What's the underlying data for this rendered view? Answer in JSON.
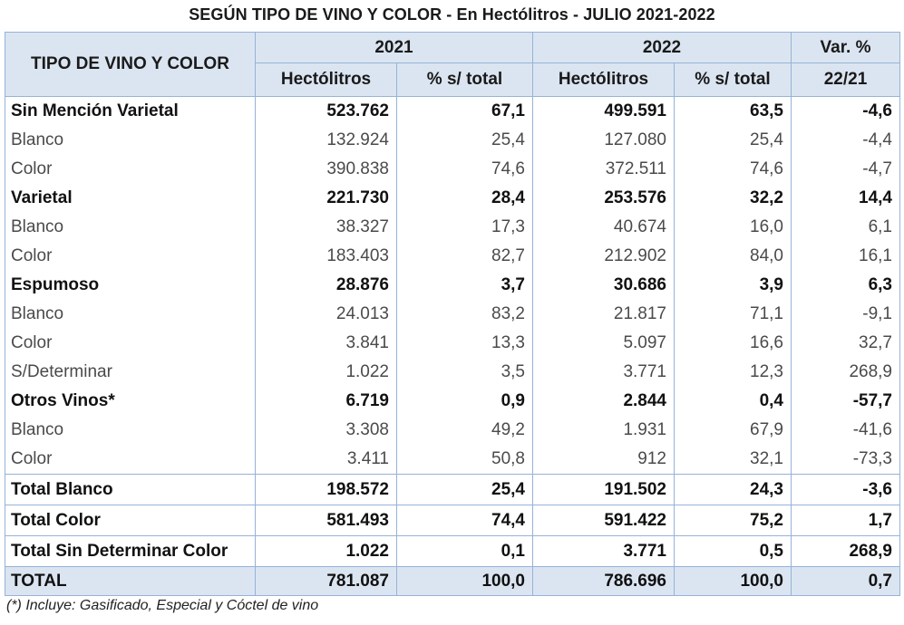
{
  "title": "SEGÚN TIPO DE VINO Y COLOR - En Hectólitros - JULIO 2021-2022",
  "header": {
    "tipo": "TIPO DE VINO Y COLOR",
    "year1": "2021",
    "year2": "2022",
    "var_line1": "Var. %",
    "var_line2": "22/21",
    "hectolitros": "Hectólitros",
    "pct_total": "% s/ total"
  },
  "rows": [
    {
      "label": "Sin Mención Varietal",
      "h2021": "523.762",
      "p2021": "67,1",
      "h2022": "499.591",
      "p2022": "63,5",
      "var": "-4,6"
    },
    {
      "label": "Blanco",
      "h2021": "132.924",
      "p2021": "25,4",
      "h2022": "127.080",
      "p2022": "25,4",
      "var": "-4,4"
    },
    {
      "label": "Color",
      "h2021": "390.838",
      "p2021": "74,6",
      "h2022": "372.511",
      "p2022": "74,6",
      "var": "-4,7"
    },
    {
      "label": "Varietal",
      "h2021": "221.730",
      "p2021": "28,4",
      "h2022": "253.576",
      "p2022": "32,2",
      "var": "14,4"
    },
    {
      "label": "Blanco",
      "h2021": "38.327",
      "p2021": "17,3",
      "h2022": "40.674",
      "p2022": "16,0",
      "var": "6,1"
    },
    {
      "label": "Color",
      "h2021": "183.403",
      "p2021": "82,7",
      "h2022": "212.902",
      "p2022": "84,0",
      "var": "16,1"
    },
    {
      "label": "Espumoso",
      "h2021": "28.876",
      "p2021": "3,7",
      "h2022": "30.686",
      "p2022": "3,9",
      "var": "6,3"
    },
    {
      "label": "Blanco",
      "h2021": "24.013",
      "p2021": "83,2",
      "h2022": "21.817",
      "p2022": "71,1",
      "var": "-9,1"
    },
    {
      "label": "Color",
      "h2021": "3.841",
      "p2021": "13,3",
      "h2022": "5.097",
      "p2022": "16,6",
      "var": "32,7"
    },
    {
      "label": "S/Determinar",
      "h2021": "1.022",
      "p2021": "3,5",
      "h2022": "3.771",
      "p2022": "12,3",
      "var": "268,9"
    },
    {
      "label": "Otros Vinos*",
      "h2021": "6.719",
      "p2021": "0,9",
      "h2022": "2.844",
      "p2022": "0,4",
      "var": "-57,7"
    },
    {
      "label": "Blanco",
      "h2021": "3.308",
      "p2021": "49,2",
      "h2022": "1.931",
      "p2022": "67,9",
      "var": "-41,6"
    },
    {
      "label": "Color",
      "h2021": "3.411",
      "p2021": "50,8",
      "h2022": "912",
      "p2022": "32,1",
      "var": "-73,3"
    }
  ],
  "totals": [
    {
      "label": "Total Blanco",
      "h2021": "198.572",
      "p2021": "25,4",
      "h2022": "191.502",
      "p2022": "24,3",
      "var": "-3,6"
    },
    {
      "label": "Total Color",
      "h2021": "581.493",
      "p2021": "74,4",
      "h2022": "591.422",
      "p2022": "75,2",
      "var": "1,7"
    },
    {
      "label": "Total Sin Determinar Color",
      "h2021": "1.022",
      "p2021": "0,1",
      "h2022": "3.771",
      "p2022": "0,5",
      "var": "268,9"
    }
  ],
  "grand_total": {
    "label": "TOTAL",
    "h2021": "781.087",
    "p2021": "100,0",
    "h2022": "786.696",
    "p2022": "100,0",
    "var": "0,7"
  },
  "footnote": "(*) Incluye: Gasificado, Especial y Cóctel de vino"
}
